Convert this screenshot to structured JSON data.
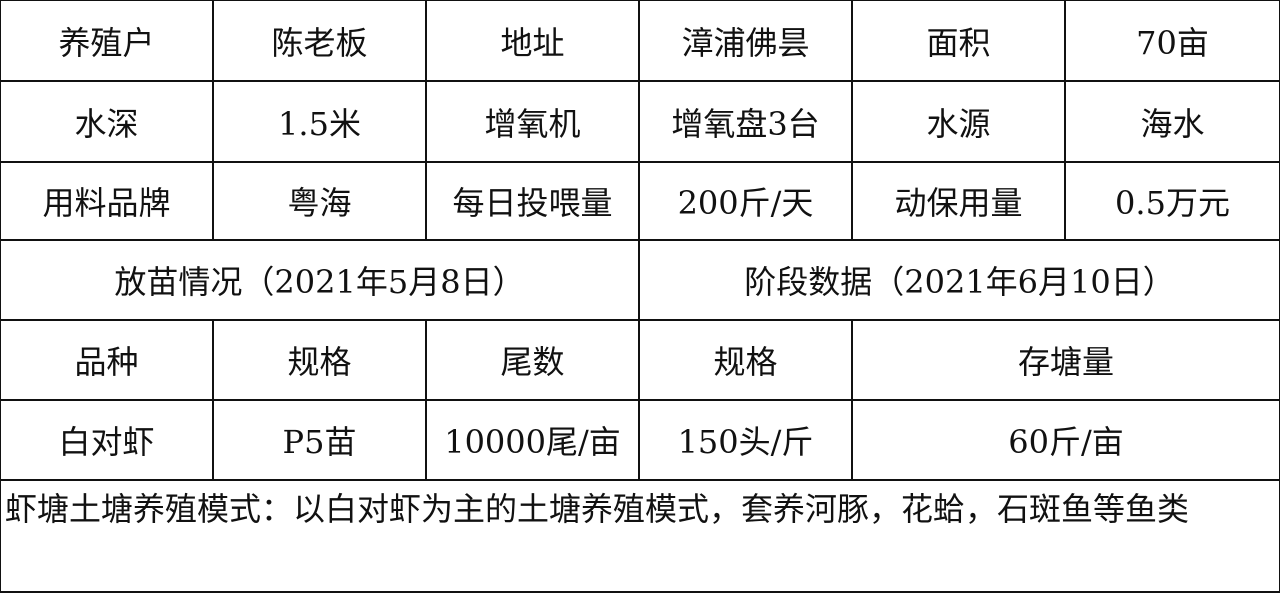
{
  "rows": [
    [
      "养殖户",
      "陈老板",
      "地址",
      "漳浦佛昙",
      "面积",
      "70亩"
    ],
    [
      "水深",
      "1.5米",
      "增氧机",
      "增氧盘3台",
      "水源",
      "海水"
    ],
    [
      "用料品牌",
      "粤海",
      "每日投喂量",
      "200斤/天",
      "动保用量",
      "0.5万元"
    ]
  ],
  "section_headers": [
    "放苗情况（2021年5月8日）",
    "阶段数据（2021年6月10日）"
  ],
  "sub_headers": [
    "品种",
    "规格",
    "尾数",
    "规格",
    "存塘量"
  ],
  "sub_values": [
    "白对虾",
    "P5苗",
    "10000尾/亩",
    "150头/斤",
    "60斤/亩"
  ],
  "note": "虾塘土塘养殖模式：以白对虾为主的土塘养殖模式，套养河豚，花蛤，石斑鱼等鱼类"
}
